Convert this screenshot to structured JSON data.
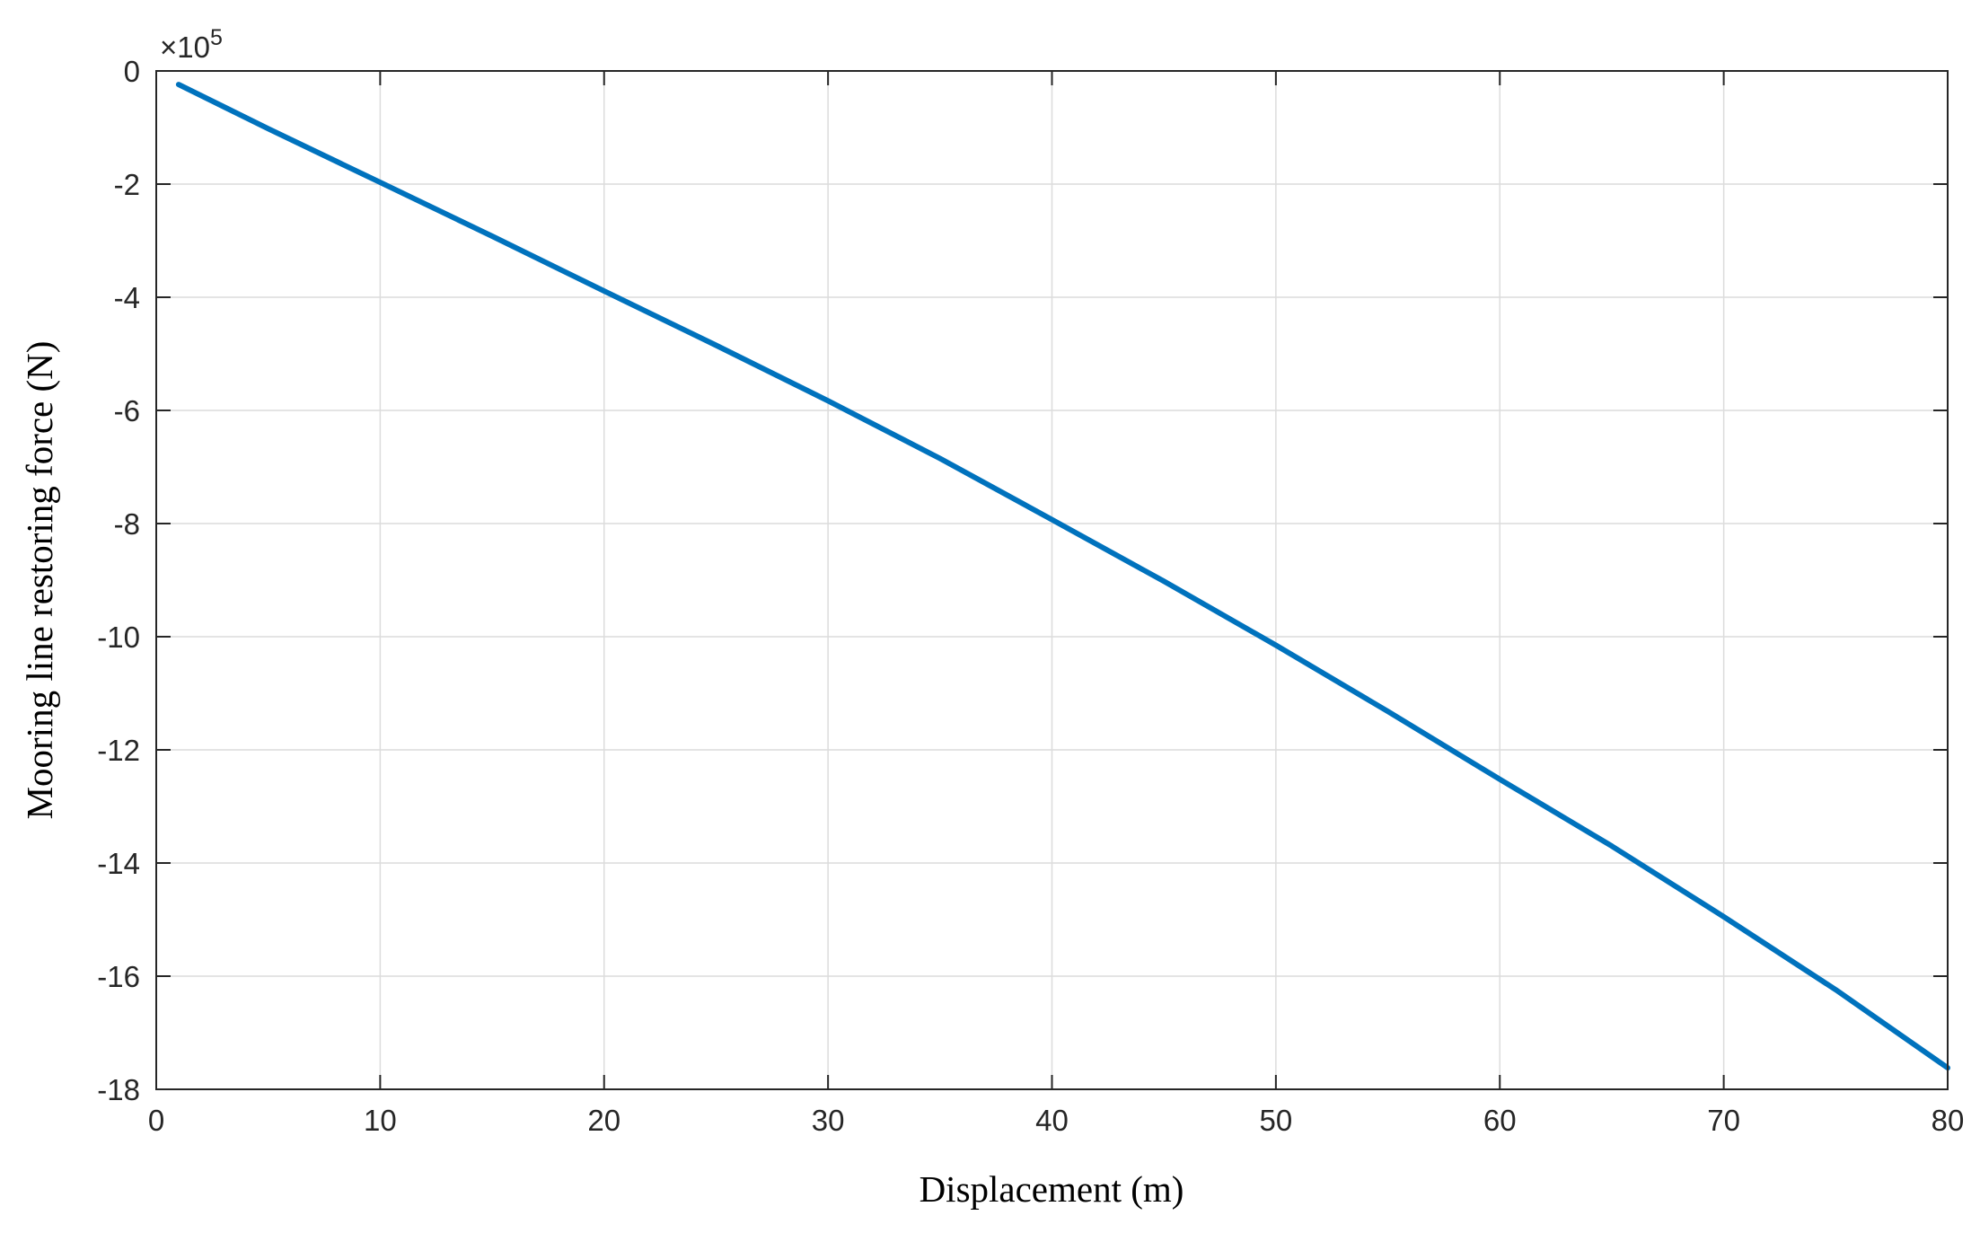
{
  "chart_data": {
    "type": "line",
    "title": "",
    "xlabel": "Displacement  (m)",
    "ylabel": "Mooring line restoring force  (N)",
    "xlim": [
      0,
      80
    ],
    "ylim": [
      -18,
      0
    ],
    "y_exponent_label": "×10",
    "y_exponent_power": "5",
    "grid": true,
    "legend": "none",
    "x_ticks": [
      0,
      10,
      20,
      30,
      40,
      50,
      60,
      70,
      80
    ],
    "x_tick_labels": [
      "0",
      "10",
      "20",
      "30",
      "40",
      "50",
      "60",
      "70",
      "80"
    ],
    "y_ticks": [
      0,
      -2,
      -4,
      -6,
      -8,
      -10,
      -12,
      -14,
      -16,
      -18
    ],
    "y_tick_labels": [
      "0",
      "-2",
      "-4",
      "-6",
      "-8",
      "-10",
      "-12",
      "-14",
      "-16",
      "-18"
    ],
    "series": [
      {
        "color": "#0072bd",
        "x": [
          1,
          5,
          10,
          15,
          20,
          25,
          30,
          35,
          40,
          45,
          50,
          55,
          60,
          65,
          70,
          75,
          80
        ],
        "y": [
          -0.24,
          -1.02,
          -1.97,
          -2.92,
          -3.89,
          -4.85,
          -5.83,
          -6.85,
          -7.93,
          -9.02,
          -10.15,
          -11.32,
          -12.52,
          -13.7,
          -14.95,
          -16.24,
          -17.62
        ]
      }
    ]
  }
}
